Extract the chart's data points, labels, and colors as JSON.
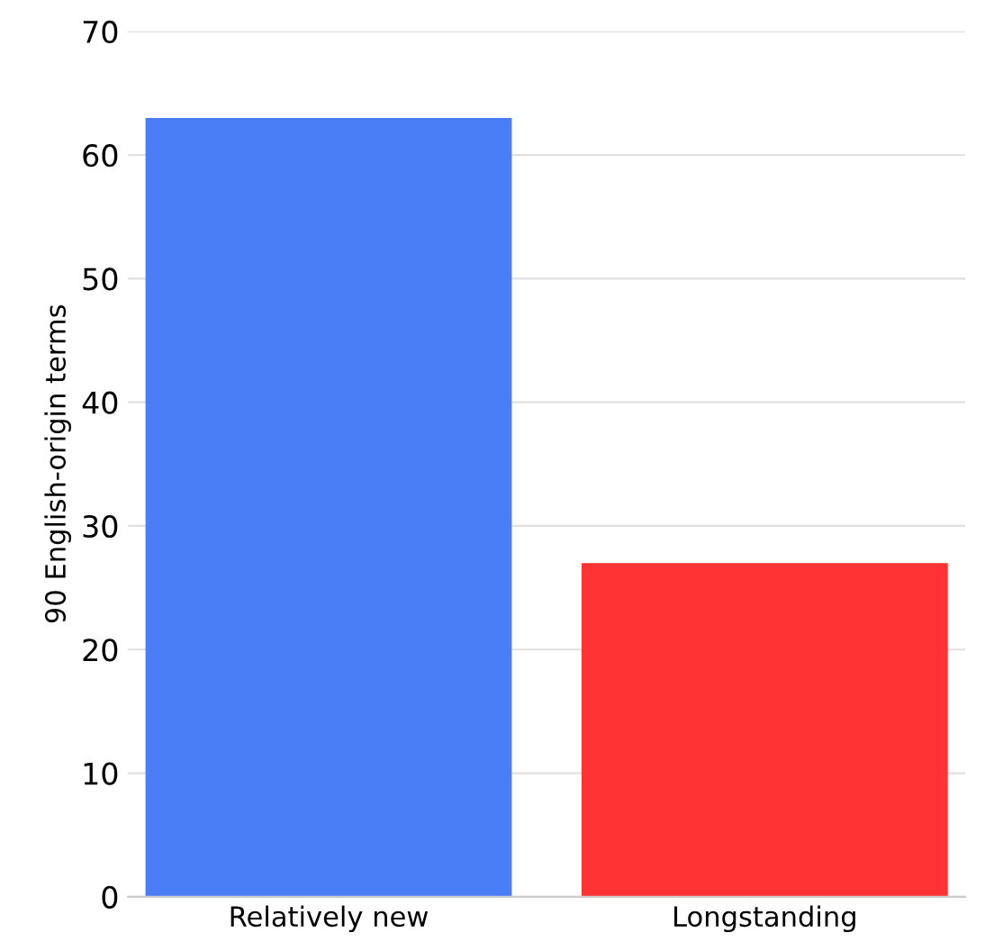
{
  "chart_data": {
    "type": "bar",
    "ylabel": "90 English-origin terms",
    "categories": [
      "Relatively new",
      "Longstanding"
    ],
    "values": [
      63,
      27
    ],
    "colors": [
      "#4a7ef7",
      "#ff3333"
    ],
    "ylim": [
      0,
      70
    ],
    "yticks": [
      0,
      10,
      20,
      30,
      40,
      50,
      60,
      70
    ],
    "grid": "y",
    "legend": false
  }
}
